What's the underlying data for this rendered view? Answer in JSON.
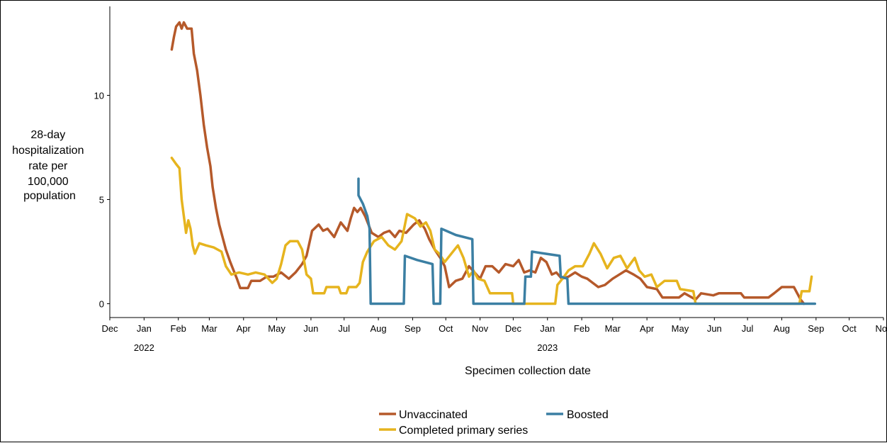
{
  "chart_data": {
    "type": "line",
    "xlabel": "Specimen collection date",
    "ylabel_lines": [
      "28-day",
      "hospitalization",
      "rate per",
      "100,000",
      "population"
    ],
    "x_range": [
      "2021-12-01",
      "2023-11-01"
    ],
    "ylim": [
      0,
      14
    ],
    "y_ticks": [
      0,
      5,
      10
    ],
    "x_ticks": [
      {
        "date": "2021-12-01",
        "label": "Dec"
      },
      {
        "date": "2022-01-01",
        "label": "Jan"
      },
      {
        "date": "2022-02-01",
        "label": "Feb"
      },
      {
        "date": "2022-03-01",
        "label": "Mar"
      },
      {
        "date": "2022-04-01",
        "label": "Apr"
      },
      {
        "date": "2022-05-01",
        "label": "May"
      },
      {
        "date": "2022-06-01",
        "label": "Jun"
      },
      {
        "date": "2022-07-01",
        "label": "Jul"
      },
      {
        "date": "2022-08-01",
        "label": "Aug"
      },
      {
        "date": "2022-09-01",
        "label": "Sep"
      },
      {
        "date": "2022-10-01",
        "label": "Oct"
      },
      {
        "date": "2022-11-01",
        "label": "Nov"
      },
      {
        "date": "2022-12-01",
        "label": "Dec"
      },
      {
        "date": "2023-01-01",
        "label": "Jan"
      },
      {
        "date": "2023-02-01",
        "label": "Feb"
      },
      {
        "date": "2023-03-01",
        "label": "Mar"
      },
      {
        "date": "2023-04-01",
        "label": "Apr"
      },
      {
        "date": "2023-05-01",
        "label": "May"
      },
      {
        "date": "2023-06-01",
        "label": "Jun"
      },
      {
        "date": "2023-07-01",
        "label": "Jul"
      },
      {
        "date": "2023-08-01",
        "label": "Aug"
      },
      {
        "date": "2023-09-01",
        "label": "Sep"
      },
      {
        "date": "2023-10-01",
        "label": "Oct"
      },
      {
        "date": "2023-11-01",
        "label": "Nov"
      }
    ],
    "year_labels": [
      {
        "date": "2022-01-01",
        "label": "2022"
      },
      {
        "date": "2023-01-01",
        "label": "2023"
      }
    ],
    "legend": {
      "position": "bottom",
      "columns": 2
    },
    "grid": false,
    "series": [
      {
        "name": "Unvaccinated",
        "color": "#B5592A",
        "points": [
          [
            "2022-01-26",
            12.2
          ],
          [
            "2022-01-28",
            12.8
          ],
          [
            "2022-01-30",
            13.3
          ],
          [
            "2022-02-02",
            13.5
          ],
          [
            "2022-02-04",
            13.2
          ],
          [
            "2022-02-06",
            13.5
          ],
          [
            "2022-02-09",
            13.2
          ],
          [
            "2022-02-13",
            13.2
          ],
          [
            "2022-02-15",
            12.0
          ],
          [
            "2022-02-18",
            11.2
          ],
          [
            "2022-02-21",
            10.0
          ],
          [
            "2022-02-24",
            8.6
          ],
          [
            "2022-02-27",
            7.5
          ],
          [
            "2022-03-02",
            6.6
          ],
          [
            "2022-03-04",
            5.6
          ],
          [
            "2022-03-07",
            4.6
          ],
          [
            "2022-03-10",
            3.8
          ],
          [
            "2022-03-13",
            3.2
          ],
          [
            "2022-03-16",
            2.6
          ],
          [
            "2022-03-20",
            2.0
          ],
          [
            "2022-03-23",
            1.6
          ],
          [
            "2022-03-26",
            1.2
          ],
          [
            "2022-03-29",
            0.75
          ],
          [
            "2022-04-05",
            0.75
          ],
          [
            "2022-04-08",
            1.1
          ],
          [
            "2022-04-16",
            1.1
          ],
          [
            "2022-04-22",
            1.3
          ],
          [
            "2022-04-28",
            1.3
          ],
          [
            "2022-05-05",
            1.5
          ],
          [
            "2022-05-12",
            1.2
          ],
          [
            "2022-05-18",
            1.5
          ],
          [
            "2022-05-24",
            1.9
          ],
          [
            "2022-05-28",
            2.3
          ],
          [
            "2022-06-02",
            3.5
          ],
          [
            "2022-06-08",
            3.8
          ],
          [
            "2022-06-12",
            3.5
          ],
          [
            "2022-06-16",
            3.6
          ],
          [
            "2022-06-22",
            3.2
          ],
          [
            "2022-06-28",
            3.9
          ],
          [
            "2022-07-04",
            3.5
          ],
          [
            "2022-07-07",
            4.1
          ],
          [
            "2022-07-10",
            4.6
          ],
          [
            "2022-07-13",
            4.4
          ],
          [
            "2022-07-16",
            4.6
          ],
          [
            "2022-07-20",
            4.2
          ],
          [
            "2022-07-26",
            3.4
          ],
          [
            "2022-08-01",
            3.2
          ],
          [
            "2022-08-06",
            3.4
          ],
          [
            "2022-08-11",
            3.5
          ],
          [
            "2022-08-16",
            3.2
          ],
          [
            "2022-08-20",
            3.5
          ],
          [
            "2022-08-26",
            3.4
          ],
          [
            "2022-09-02",
            3.8
          ],
          [
            "2022-09-07",
            4.0
          ],
          [
            "2022-09-12",
            3.6
          ],
          [
            "2022-09-16",
            3.1
          ],
          [
            "2022-09-21",
            2.6
          ],
          [
            "2022-09-26",
            2.2
          ],
          [
            "2022-09-30",
            1.8
          ],
          [
            "2022-10-04",
            0.8
          ],
          [
            "2022-10-10",
            1.1
          ],
          [
            "2022-10-16",
            1.2
          ],
          [
            "2022-10-22",
            1.8
          ],
          [
            "2022-10-27",
            1.5
          ],
          [
            "2022-11-01",
            1.2
          ],
          [
            "2022-11-06",
            1.8
          ],
          [
            "2022-11-12",
            1.8
          ],
          [
            "2022-11-18",
            1.5
          ],
          [
            "2022-11-24",
            1.9
          ],
          [
            "2022-12-01",
            1.8
          ],
          [
            "2022-12-06",
            2.1
          ],
          [
            "2022-12-11",
            1.5
          ],
          [
            "2022-12-16",
            1.6
          ],
          [
            "2022-12-21",
            1.5
          ],
          [
            "2022-12-26",
            2.2
          ],
          [
            "2022-12-31",
            2.0
          ],
          [
            "2023-01-05",
            1.4
          ],
          [
            "2023-01-09",
            1.5
          ],
          [
            "2023-01-14",
            1.2
          ],
          [
            "2023-01-20",
            1.3
          ],
          [
            "2023-01-26",
            1.5
          ],
          [
            "2023-02-01",
            1.3
          ],
          [
            "2023-02-06",
            1.2
          ],
          [
            "2023-02-11",
            1.0
          ],
          [
            "2023-02-16",
            0.8
          ],
          [
            "2023-02-22",
            0.9
          ],
          [
            "2023-03-01",
            1.2
          ],
          [
            "2023-03-07",
            1.4
          ],
          [
            "2023-03-13",
            1.6
          ],
          [
            "2023-03-20",
            1.4
          ],
          [
            "2023-03-26",
            1.2
          ],
          [
            "2023-04-01",
            0.8
          ],
          [
            "2023-04-10",
            0.7
          ],
          [
            "2023-04-15",
            0.3
          ],
          [
            "2023-04-30",
            0.3
          ],
          [
            "2023-05-05",
            0.5
          ],
          [
            "2023-05-15",
            0.2
          ],
          [
            "2023-05-20",
            0.5
          ],
          [
            "2023-05-31",
            0.4
          ],
          [
            "2023-06-05",
            0.5
          ],
          [
            "2023-06-25",
            0.5
          ],
          [
            "2023-06-28",
            0.3
          ],
          [
            "2023-07-20",
            0.3
          ],
          [
            "2023-07-25",
            0.5
          ],
          [
            "2023-08-01",
            0.8
          ],
          [
            "2023-08-12",
            0.8
          ],
          [
            "2023-08-15",
            0.5
          ],
          [
            "2023-08-18",
            0.2
          ],
          [
            "2023-08-21",
            0.0
          ]
        ]
      },
      {
        "name": "Completed primary series",
        "color": "#E6B41E",
        "points": [
          [
            "2022-01-26",
            7.0
          ],
          [
            "2022-01-30",
            6.7
          ],
          [
            "2022-02-02",
            6.5
          ],
          [
            "2022-02-04",
            5.0
          ],
          [
            "2022-02-06",
            4.2
          ],
          [
            "2022-02-08",
            3.4
          ],
          [
            "2022-02-10",
            4.0
          ],
          [
            "2022-02-12",
            3.6
          ],
          [
            "2022-02-14",
            2.8
          ],
          [
            "2022-02-16",
            2.4
          ],
          [
            "2022-02-20",
            2.9
          ],
          [
            "2022-02-26",
            2.8
          ],
          [
            "2022-03-05",
            2.7
          ],
          [
            "2022-03-12",
            2.5
          ],
          [
            "2022-03-16",
            1.8
          ],
          [
            "2022-03-21",
            1.4
          ],
          [
            "2022-03-28",
            1.5
          ],
          [
            "2022-04-05",
            1.4
          ],
          [
            "2022-04-12",
            1.5
          ],
          [
            "2022-04-20",
            1.4
          ],
          [
            "2022-04-27",
            1.0
          ],
          [
            "2022-05-01",
            1.2
          ],
          [
            "2022-05-05",
            1.9
          ],
          [
            "2022-05-09",
            2.8
          ],
          [
            "2022-05-13",
            3.0
          ],
          [
            "2022-05-20",
            3.0
          ],
          [
            "2022-05-24",
            2.6
          ],
          [
            "2022-05-28",
            1.4
          ],
          [
            "2022-06-01",
            1.2
          ],
          [
            "2022-06-03",
            0.5
          ],
          [
            "2022-06-13",
            0.5
          ],
          [
            "2022-06-15",
            0.8
          ],
          [
            "2022-06-26",
            0.8
          ],
          [
            "2022-06-28",
            0.5
          ],
          [
            "2022-07-03",
            0.5
          ],
          [
            "2022-07-05",
            0.8
          ],
          [
            "2022-07-12",
            0.8
          ],
          [
            "2022-07-15",
            1.0
          ],
          [
            "2022-07-18",
            2.0
          ],
          [
            "2022-07-22",
            2.5
          ],
          [
            "2022-07-28",
            3.0
          ],
          [
            "2022-08-04",
            3.2
          ],
          [
            "2022-08-10",
            2.8
          ],
          [
            "2022-08-16",
            2.6
          ],
          [
            "2022-08-22",
            3.0
          ],
          [
            "2022-08-27",
            4.3
          ],
          [
            "2022-09-03",
            4.1
          ],
          [
            "2022-09-08",
            3.7
          ],
          [
            "2022-09-13",
            3.9
          ],
          [
            "2022-09-17",
            3.5
          ],
          [
            "2022-09-21",
            2.6
          ],
          [
            "2022-09-25",
            2.4
          ],
          [
            "2022-09-30",
            2.0
          ],
          [
            "2022-10-06",
            2.4
          ],
          [
            "2022-10-12",
            2.8
          ],
          [
            "2022-10-17",
            2.2
          ],
          [
            "2022-10-22",
            1.3
          ],
          [
            "2022-10-26",
            1.6
          ],
          [
            "2022-10-30",
            1.2
          ],
          [
            "2022-11-05",
            1.1
          ],
          [
            "2022-11-10",
            0.5
          ],
          [
            "2022-11-30",
            0.5
          ],
          [
            "2022-12-01",
            0.0
          ],
          [
            "2023-01-08",
            0.0
          ],
          [
            "2023-01-10",
            0.9
          ],
          [
            "2023-01-16",
            1.3
          ],
          [
            "2023-01-20",
            1.6
          ],
          [
            "2023-01-26",
            1.8
          ],
          [
            "2023-02-02",
            1.8
          ],
          [
            "2023-02-08",
            2.4
          ],
          [
            "2023-02-12",
            2.9
          ],
          [
            "2023-02-18",
            2.4
          ],
          [
            "2023-02-24",
            1.7
          ],
          [
            "2023-03-02",
            2.2
          ],
          [
            "2023-03-08",
            2.3
          ],
          [
            "2023-03-14",
            1.7
          ],
          [
            "2023-03-21",
            2.2
          ],
          [
            "2023-03-25",
            1.6
          ],
          [
            "2023-03-30",
            1.3
          ],
          [
            "2023-04-05",
            1.4
          ],
          [
            "2023-04-10",
            0.8
          ],
          [
            "2023-04-17",
            1.1
          ],
          [
            "2023-04-28",
            1.1
          ],
          [
            "2023-05-01",
            0.7
          ],
          [
            "2023-05-13",
            0.6
          ],
          [
            "2023-05-15",
            0.0
          ],
          [
            "2023-08-17",
            0.0
          ],
          [
            "2023-08-19",
            0.6
          ],
          [
            "2023-08-26",
            0.6
          ],
          [
            "2023-08-28",
            1.3
          ]
        ]
      },
      {
        "name": "Boosted",
        "color": "#3B7FA3",
        "points": [
          [
            "2022-07-14",
            6.0
          ],
          [
            "2022-07-14",
            5.2
          ],
          [
            "2022-07-18",
            4.8
          ],
          [
            "2022-07-22",
            4.2
          ],
          [
            "2022-07-24",
            3.6
          ],
          [
            "2022-07-25",
            0.0
          ],
          [
            "2022-08-24",
            0.0
          ],
          [
            "2022-08-25",
            2.3
          ],
          [
            "2022-09-05",
            2.1
          ],
          [
            "2022-09-19",
            1.9
          ],
          [
            "2022-09-20",
            0.0
          ],
          [
            "2022-09-26",
            0.0
          ],
          [
            "2022-09-27",
            3.6
          ],
          [
            "2022-10-10",
            3.3
          ],
          [
            "2022-10-25",
            3.1
          ],
          [
            "2022-10-26",
            0.0
          ],
          [
            "2022-12-11",
            0.0
          ],
          [
            "2022-12-12",
            1.3
          ],
          [
            "2022-12-17",
            1.3
          ],
          [
            "2022-12-18",
            2.5
          ],
          [
            "2022-12-30",
            2.4
          ],
          [
            "2023-01-12",
            2.3
          ],
          [
            "2023-01-13",
            1.3
          ],
          [
            "2023-01-19",
            1.2
          ],
          [
            "2023-01-20",
            0.0
          ],
          [
            "2023-08-31",
            0.0
          ]
        ]
      }
    ]
  }
}
